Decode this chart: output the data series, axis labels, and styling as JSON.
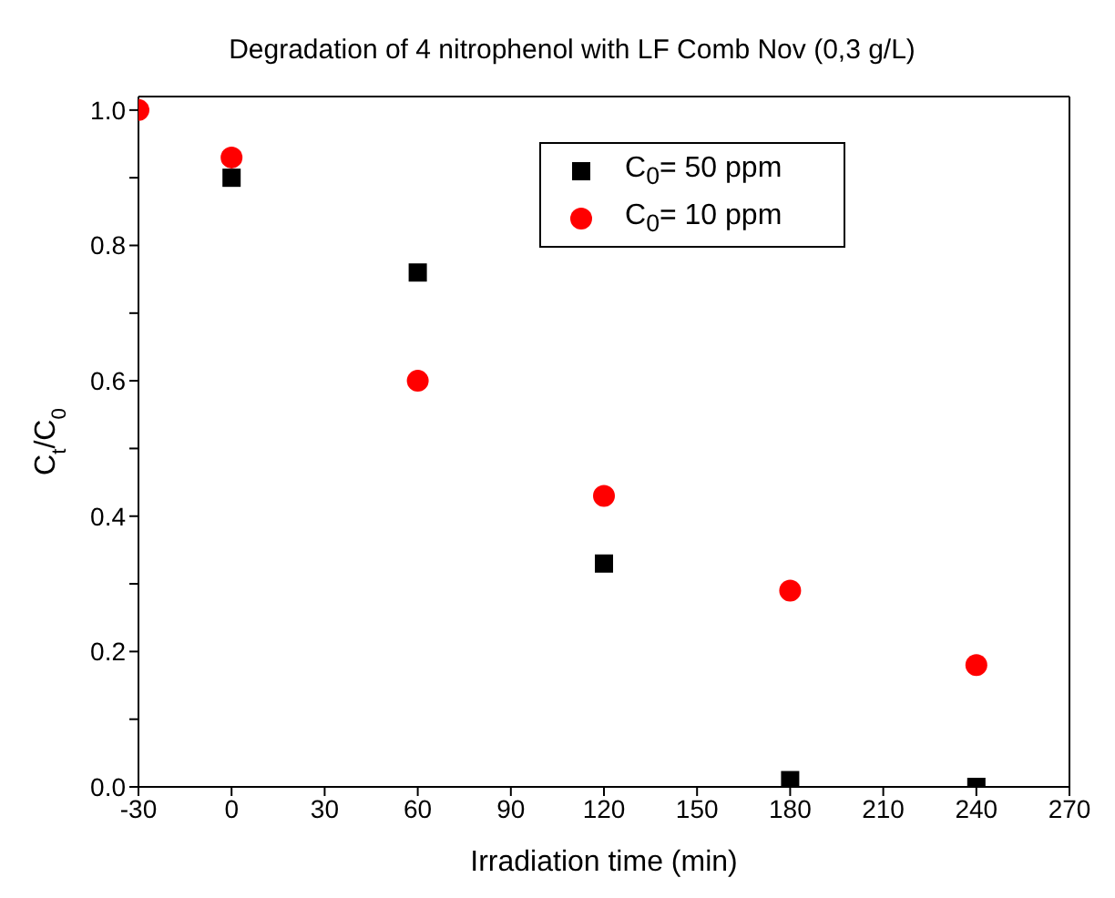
{
  "chart_data": {
    "type": "scatter",
    "title": "Degradation of 4 nitrophenol with LF Comb Nov (0,3 g/L)",
    "xlabel": "Irradiation time (min)",
    "ylabel": "C$_{t}$/C$_{0}$",
    "x": [
      -30,
      0,
      60,
      120,
      180,
      240
    ],
    "series": [
      {
        "name": "C$_{0}$= 50 ppm",
        "color": "#000000",
        "marker": "square",
        "values": [
          null,
          0.9,
          0.76,
          0.33,
          0.01,
          0.0
        ]
      },
      {
        "name": "C$_{0}$= 10 ppm",
        "color": "#ff0000",
        "marker": "circle",
        "values": [
          1.0,
          0.93,
          0.6,
          0.43,
          0.29,
          0.18
        ]
      }
    ],
    "xlim": [
      -30,
      270
    ],
    "xticks": [
      -30,
      0,
      30,
      60,
      90,
      120,
      150,
      180,
      210,
      240,
      270
    ],
    "ylim": [
      0,
      1.02
    ],
    "yticks": [
      {
        "value": 0,
        "label": "0.0"
      },
      {
        "value": 0.1,
        "label": null
      },
      0.2,
      {
        "value": 0.3,
        "label": null
      },
      0.4,
      {
        "value": 0.5,
        "label": null
      },
      0.6,
      {
        "value": 0.7,
        "label": null
      },
      0.8,
      {
        "value": 0.9,
        "label": null
      },
      {
        "value": 1,
        "label": "1.0"
      }
    ],
    "legend": "top right"
  }
}
